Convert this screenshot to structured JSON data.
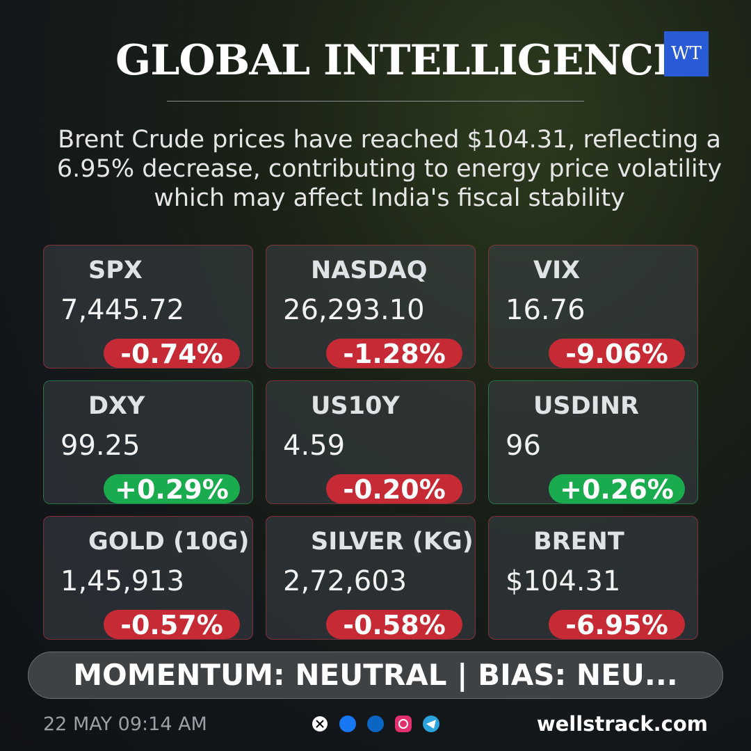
{
  "header": {
    "title": "GLOBAL INTELLIGENCE",
    "logo": "WT"
  },
  "summary": "Brent Crude prices have reached $104.31, reflecting a 6.95% decrease, contributing to energy price volatility which may affect India's fiscal stability",
  "cards": [
    {
      "name": "SPX",
      "value": "7,445.72",
      "change": "-0.74%",
      "trend": "down"
    },
    {
      "name": "NASDAQ",
      "value": "26,293.10",
      "change": "-1.28%",
      "trend": "down"
    },
    {
      "name": "VIX",
      "value": "16.76",
      "change": "-9.06%",
      "trend": "down"
    },
    {
      "name": "DXY",
      "value": "99.25",
      "change": "+0.29%",
      "trend": "up"
    },
    {
      "name": "US10Y",
      "value": "4.59",
      "change": "-0.20%",
      "trend": "down"
    },
    {
      "name": "USDINR",
      "value": "96",
      "change": "+0.26%",
      "trend": "up"
    },
    {
      "name": "GOLD (10G)",
      "value": "1,45,913",
      "change": "-0.57%",
      "trend": "down"
    },
    {
      "name": "SILVER (KG)",
      "value": "2,72,603",
      "change": "-0.58%",
      "trend": "down"
    },
    {
      "name": "BRENT",
      "value": "$104.31",
      "change": "-6.95%",
      "trend": "down"
    }
  ],
  "banner": "MOMENTUM: NEUTRAL | BIAS: NEU...",
  "footer": {
    "date": "22 MAY 09:14 AM",
    "website": "wellstrack.com"
  }
}
